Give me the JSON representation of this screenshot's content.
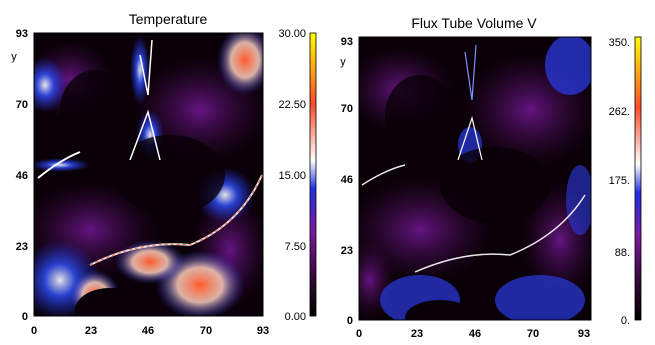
{
  "chart_data": [
    {
      "type": "heatmap",
      "title": "Temperature",
      "ylabel": "y",
      "xticks": [
        "0",
        "23",
        "46",
        "70",
        "93"
      ],
      "yticks": [
        "0",
        "23",
        "46",
        "70",
        "93"
      ],
      "xlim": [
        0,
        93
      ],
      "ylim": [
        0,
        93
      ],
      "colorbar": {
        "range": [
          0,
          30
        ],
        "tick_labels": [
          "30.00",
          "22.50",
          "15.00",
          "7.50",
          "0.00"
        ]
      },
      "colormap": [
        "#000000",
        "#3a0a3f",
        "#7a1aa0",
        "#2030e0",
        "#ffffff",
        "#ff4a2a",
        "#ffff00"
      ],
      "background_color": "#0a0007"
    },
    {
      "type": "heatmap",
      "title": "Flux Tube Volume V",
      "ylabel": "y",
      "xticks": [
        "0",
        "23",
        "46",
        "70",
        "93"
      ],
      "yticks": [
        "0",
        "23",
        "46",
        "70",
        "93"
      ],
      "xlim": [
        0,
        93
      ],
      "ylim": [
        0,
        93
      ],
      "colorbar": {
        "range": [
          0,
          350
        ],
        "tick_labels": [
          "350.",
          "262.",
          "175.",
          "88.",
          "0."
        ]
      },
      "colormap": [
        "#000000",
        "#3a0a3f",
        "#7a1aa0",
        "#2030e0",
        "#ffffff",
        "#ff4a2a",
        "#ffff00"
      ],
      "background_color": "#0a0007"
    }
  ]
}
